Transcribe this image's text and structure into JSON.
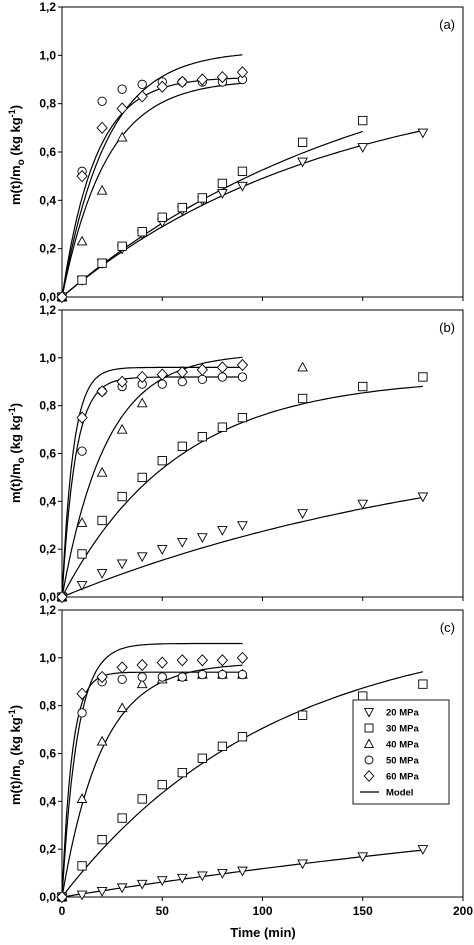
{
  "figure": {
    "ylabel": "m(t)/m",
    "ylabel_sub": "o",
    "ylabel_unit": " (kg kg",
    "ylabel_sup": "-1",
    "ylabel_close": ")",
    "xlabel": "Time (min)"
  },
  "chart_data": [
    {
      "type": "scatter",
      "panel": "(a)",
      "xlim": [
        0,
        200
      ],
      "ylim": [
        0,
        1.2
      ],
      "xticks": [
        "0",
        "50",
        "100",
        "150",
        "200"
      ],
      "yticks": [
        "0,0",
        "0,2",
        "0,4",
        "0,6",
        "0,8",
        "1,0",
        "1,2"
      ],
      "series": [
        {
          "name": "20 MPa",
          "marker": "triangle-down",
          "x": [
            0,
            10,
            20,
            30,
            40,
            50,
            60,
            70,
            80,
            90,
            120,
            150,
            180
          ],
          "y": [
            0.0,
            0.07,
            0.14,
            0.2,
            0.26,
            0.31,
            0.36,
            0.4,
            0.43,
            0.46,
            0.56,
            0.62,
            0.68
          ],
          "model": {
            "a": 0.93,
            "k": 0.0075
          }
        },
        {
          "name": "30 MPa",
          "marker": "square",
          "x": [
            0,
            10,
            20,
            30,
            40,
            50,
            60,
            70,
            80,
            90,
            120,
            150
          ],
          "y": [
            0.0,
            0.07,
            0.14,
            0.21,
            0.27,
            0.33,
            0.37,
            0.41,
            0.47,
            0.52,
            0.64,
            0.73
          ],
          "model": {
            "a": 1.1,
            "k": 0.0065,
            "xmax": 150
          }
        },
        {
          "name": "40 MPa",
          "marker": "triangle-up",
          "x": [
            0,
            10,
            20,
            30
          ],
          "y": [
            0.0,
            0.23,
            0.44,
            0.66
          ],
          "model": {
            "a": 0.9,
            "k": 0.045,
            "xmax": 90
          }
        },
        {
          "name": "50 MPa",
          "marker": "circle",
          "x": [
            0,
            10,
            20,
            30,
            40,
            50,
            60,
            70,
            80,
            90
          ],
          "y": [
            0.0,
            0.52,
            0.81,
            0.86,
            0.88,
            0.89,
            0.89,
            0.89,
            0.89,
            0.9
          ],
          "model": {
            "a": 1.02,
            "k": 0.045,
            "xmax": 90
          }
        },
        {
          "name": "60 MPa",
          "marker": "diamond",
          "x": [
            0,
            10,
            20,
            30,
            40,
            50,
            60,
            70,
            80,
            90
          ],
          "y": [
            0.0,
            0.5,
            0.7,
            0.78,
            0.83,
            0.87,
            0.89,
            0.9,
            0.91,
            0.93
          ],
          "model": {
            "a": 0.91,
            "k": 0.06,
            "xmax": 90
          }
        }
      ]
    },
    {
      "type": "scatter",
      "panel": "(b)",
      "xlim": [
        0,
        200
      ],
      "ylim": [
        0,
        1.2
      ],
      "xticks": [
        "0",
        "50",
        "100",
        "150",
        "200"
      ],
      "yticks": [
        "0,0",
        "0,2",
        "0,4",
        "0,6",
        "0,8",
        "1,0",
        "1,2"
      ],
      "series": [
        {
          "name": "20 MPa",
          "marker": "triangle-down",
          "x": [
            0,
            10,
            20,
            30,
            40,
            50,
            60,
            70,
            80,
            90,
            120,
            150,
            180
          ],
          "y": [
            0.0,
            0.05,
            0.1,
            0.14,
            0.17,
            0.2,
            0.23,
            0.25,
            0.28,
            0.3,
            0.35,
            0.39,
            0.42
          ],
          "model": {
            "a": 0.72,
            "k": 0.0048
          }
        },
        {
          "name": "30 MPa",
          "marker": "square",
          "x": [
            0,
            10,
            20,
            30,
            40,
            50,
            60,
            70,
            80,
            90,
            120,
            150,
            180
          ],
          "y": [
            0.0,
            0.18,
            0.32,
            0.42,
            0.5,
            0.57,
            0.63,
            0.67,
            0.71,
            0.75,
            0.83,
            0.88,
            0.92
          ],
          "model": {
            "a": 0.92,
            "k": 0.0175
          }
        },
        {
          "name": "40 MPa",
          "marker": "triangle-up",
          "x": [
            0,
            10,
            20,
            30,
            40,
            120
          ],
          "y": [
            0.0,
            0.31,
            0.52,
            0.7,
            0.81,
            0.96
          ],
          "model": {
            "a": 1.02,
            "k": 0.045,
            "xmax": 90
          }
        },
        {
          "name": "50 MPa",
          "marker": "circle",
          "x": [
            0,
            10,
            20,
            30,
            40,
            50,
            60,
            70,
            80,
            90
          ],
          "y": [
            0.0,
            0.61,
            0.86,
            0.88,
            0.89,
            0.89,
            0.9,
            0.91,
            0.92,
            0.92
          ],
          "model": {
            "a": 0.92,
            "k": 0.15,
            "xmax": 90
          }
        },
        {
          "name": "60 MPa",
          "marker": "diamond",
          "x": [
            0,
            10,
            20,
            30,
            40,
            50,
            60,
            70,
            80,
            90
          ],
          "y": [
            0.0,
            0.75,
            0.86,
            0.9,
            0.92,
            0.93,
            0.94,
            0.95,
            0.96,
            0.97
          ],
          "model": {
            "a": 0.96,
            "k": 0.18,
            "xmax": 90
          }
        }
      ]
    },
    {
      "type": "scatter",
      "panel": "(c)",
      "xlim": [
        0,
        200
      ],
      "ylim": [
        0,
        1.2
      ],
      "xticks": [
        "0",
        "50",
        "100",
        "150",
        "200"
      ],
      "yticks": [
        "0,0",
        "0,2",
        "0,4",
        "0,6",
        "0,8",
        "1,0",
        "1,2"
      ],
      "legend": {
        "position": "bottom-right",
        "model_label": "Model"
      },
      "series": [
        {
          "name": "20 MPa",
          "marker": "triangle-down",
          "x": [
            0,
            10,
            20,
            30,
            40,
            50,
            60,
            70,
            80,
            90,
            120,
            150,
            180
          ],
          "y": [
            0.0,
            0.01,
            0.025,
            0.04,
            0.055,
            0.07,
            0.08,
            0.09,
            0.1,
            0.11,
            0.14,
            0.17,
            0.2
          ],
          "model": {
            "a": 0.6,
            "k": 0.0022
          }
        },
        {
          "name": "30 MPa",
          "marker": "square",
          "x": [
            0,
            10,
            20,
            30,
            40,
            50,
            60,
            70,
            80,
            90,
            120,
            150,
            180
          ],
          "y": [
            0.0,
            0.13,
            0.24,
            0.33,
            0.41,
            0.47,
            0.52,
            0.58,
            0.63,
            0.67,
            0.76,
            0.84,
            0.89
          ],
          "model": {
            "a": 1.15,
            "k": 0.0095
          }
        },
        {
          "name": "40 MPa",
          "marker": "triangle-up",
          "x": [
            0,
            10,
            20,
            30,
            40,
            50,
            60,
            70,
            80,
            90
          ],
          "y": [
            0.0,
            0.41,
            0.65,
            0.79,
            0.89,
            0.91,
            0.92,
            0.93,
            0.93,
            0.93
          ],
          "model": {
            "a": 0.98,
            "k": 0.05,
            "xmax": 90
          }
        },
        {
          "name": "50 MPa",
          "marker": "circle",
          "x": [
            0,
            10,
            20,
            30,
            40,
            50,
            60,
            70,
            80,
            90
          ],
          "y": [
            0.0,
            0.77,
            0.9,
            0.91,
            0.92,
            0.92,
            0.92,
            0.93,
            0.93,
            0.93
          ],
          "model": {
            "a": 0.94,
            "k": 0.2,
            "xmax": 90
          }
        },
        {
          "name": "60 MPa",
          "marker": "diamond",
          "x": [
            0,
            10,
            20,
            30,
            40,
            50,
            60,
            70,
            80,
            90
          ],
          "y": [
            0.0,
            0.85,
            0.92,
            0.96,
            0.97,
            0.98,
            0.99,
            0.99,
            0.99,
            1.0
          ],
          "model": {
            "a": 1.06,
            "k": 0.13,
            "xmax": 90
          }
        }
      ]
    }
  ]
}
